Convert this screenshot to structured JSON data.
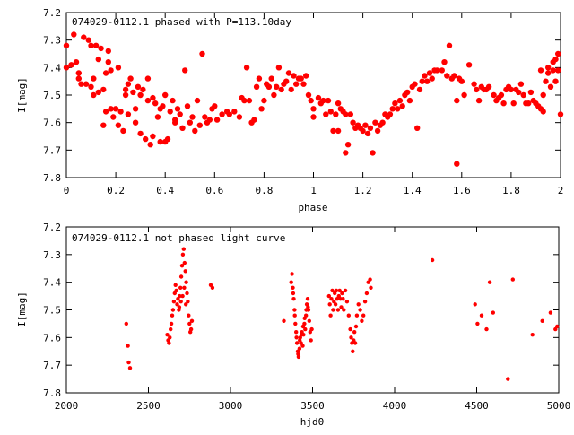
{
  "chart_data": [
    {
      "type": "scatter",
      "title": "074029-0112.1 phased with P=113.10day",
      "xlabel": "phase",
      "ylabel": "I[mag]",
      "xlim": [
        0,
        2
      ],
      "ylim": [
        7.8,
        7.2
      ],
      "y_inverted": true,
      "grid": false,
      "point_color": "#ff0000",
      "x_ticks": [
        "0",
        "0.2",
        "0.4",
        "0.6",
        "0.8",
        "1",
        "1.2",
        "1.4",
        "1.6",
        "1.8",
        "2"
      ],
      "y_ticks": [
        "7.2",
        "7.3",
        "7.4",
        "7.5",
        "7.6",
        "7.7",
        "7.8"
      ],
      "points": [
        [
          0.0,
          7.32
        ],
        [
          0.0,
          7.4
        ],
        [
          0.02,
          7.39
        ],
        [
          0.03,
          7.28
        ],
        [
          0.04,
          7.38
        ],
        [
          0.05,
          7.42
        ],
        [
          0.05,
          7.44
        ],
        [
          0.06,
          7.46
        ],
        [
          0.07,
          7.29
        ],
        [
          0.08,
          7.46
        ],
        [
          0.09,
          7.3
        ],
        [
          0.1,
          7.47
        ],
        [
          0.1,
          7.32
        ],
        [
          0.11,
          7.44
        ],
        [
          0.11,
          7.5
        ],
        [
          0.12,
          7.32
        ],
        [
          0.13,
          7.37
        ],
        [
          0.13,
          7.49
        ],
        [
          0.14,
          7.33
        ],
        [
          0.15,
          7.61
        ],
        [
          0.15,
          7.48
        ],
        [
          0.16,
          7.56
        ],
        [
          0.16,
          7.42
        ],
        [
          0.17,
          7.38
        ],
        [
          0.17,
          7.34
        ],
        [
          0.18,
          7.41
        ],
        [
          0.18,
          7.55
        ],
        [
          0.19,
          7.58
        ],
        [
          0.2,
          7.55
        ],
        [
          0.21,
          7.4
        ],
        [
          0.21,
          7.61
        ],
        [
          0.22,
          7.56
        ],
        [
          0.23,
          7.63
        ],
        [
          0.24,
          7.48
        ],
        [
          0.24,
          7.5
        ],
        [
          0.25,
          7.46
        ],
        [
          0.25,
          7.57
        ],
        [
          0.26,
          7.44
        ],
        [
          0.27,
          7.49
        ],
        [
          0.28,
          7.55
        ],
        [
          0.28,
          7.6
        ],
        [
          0.29,
          7.47
        ],
        [
          0.3,
          7.64
        ],
        [
          0.3,
          7.5
        ],
        [
          0.31,
          7.48
        ],
        [
          0.32,
          7.66
        ],
        [
          0.33,
          7.52
        ],
        [
          0.33,
          7.44
        ],
        [
          0.34,
          7.68
        ],
        [
          0.35,
          7.65
        ],
        [
          0.35,
          7.51
        ],
        [
          0.36,
          7.53
        ],
        [
          0.37,
          7.58
        ],
        [
          0.38,
          7.67
        ],
        [
          0.38,
          7.55
        ],
        [
          0.39,
          7.54
        ],
        [
          0.4,
          7.67
        ],
        [
          0.4,
          7.5
        ],
        [
          0.41,
          7.66
        ],
        [
          0.42,
          7.56
        ],
        [
          0.43,
          7.52
        ],
        [
          0.44,
          7.59
        ],
        [
          0.44,
          7.6
        ],
        [
          0.45,
          7.55
        ],
        [
          0.46,
          7.57
        ],
        [
          0.47,
          7.62
        ],
        [
          0.48,
          7.41
        ],
        [
          0.49,
          7.54
        ],
        [
          0.5,
          7.6
        ],
        [
          0.51,
          7.58
        ],
        [
          0.52,
          7.63
        ],
        [
          0.53,
          7.52
        ],
        [
          0.54,
          7.61
        ],
        [
          0.55,
          7.35
        ],
        [
          0.56,
          7.58
        ],
        [
          0.57,
          7.6
        ],
        [
          0.58,
          7.59
        ],
        [
          0.59,
          7.55
        ],
        [
          0.6,
          7.54
        ],
        [
          0.61,
          7.59
        ],
        [
          0.63,
          7.57
        ],
        [
          0.65,
          7.56
        ],
        [
          0.66,
          7.57
        ],
        [
          0.68,
          7.56
        ],
        [
          0.7,
          7.58
        ],
        [
          0.71,
          7.51
        ],
        [
          0.72,
          7.52
        ],
        [
          0.73,
          7.4
        ],
        [
          0.74,
          7.52
        ],
        [
          0.75,
          7.6
        ],
        [
          0.76,
          7.59
        ],
        [
          0.77,
          7.47
        ],
        [
          0.78,
          7.44
        ],
        [
          0.79,
          7.55
        ],
        [
          0.8,
          7.52
        ],
        [
          0.81,
          7.46
        ],
        [
          0.82,
          7.47
        ],
        [
          0.83,
          7.44
        ],
        [
          0.84,
          7.5
        ],
        [
          0.85,
          7.47
        ],
        [
          0.86,
          7.4
        ],
        [
          0.87,
          7.48
        ],
        [
          0.88,
          7.46
        ],
        [
          0.89,
          7.45
        ],
        [
          0.9,
          7.42
        ],
        [
          0.91,
          7.48
        ],
        [
          0.92,
          7.43
        ],
        [
          0.93,
          7.46
        ],
        [
          0.94,
          7.44
        ],
        [
          0.95,
          7.44
        ],
        [
          0.96,
          7.46
        ],
        [
          0.97,
          7.43
        ],
        [
          0.98,
          7.5
        ],
        [
          0.99,
          7.52
        ],
        [
          1.0,
          7.55
        ],
        [
          1.0,
          7.58
        ],
        [
          1.02,
          7.51
        ],
        [
          1.03,
          7.53
        ],
        [
          1.04,
          7.52
        ],
        [
          1.05,
          7.57
        ],
        [
          1.06,
          7.52
        ],
        [
          1.07,
          7.56
        ],
        [
          1.08,
          7.63
        ],
        [
          1.09,
          7.57
        ],
        [
          1.1,
          7.53
        ],
        [
          1.1,
          7.63
        ],
        [
          1.11,
          7.55
        ],
        [
          1.12,
          7.56
        ],
        [
          1.13,
          7.71
        ],
        [
          1.13,
          7.57
        ],
        [
          1.14,
          7.68
        ],
        [
          1.15,
          7.57
        ],
        [
          1.16,
          7.6
        ],
        [
          1.17,
          7.62
        ],
        [
          1.18,
          7.61
        ],
        [
          1.19,
          7.62
        ],
        [
          1.2,
          7.63
        ],
        [
          1.21,
          7.61
        ],
        [
          1.22,
          7.64
        ],
        [
          1.23,
          7.62
        ],
        [
          1.24,
          7.71
        ],
        [
          1.25,
          7.6
        ],
        [
          1.26,
          7.63
        ],
        [
          1.27,
          7.61
        ],
        [
          1.28,
          7.6
        ],
        [
          1.29,
          7.57
        ],
        [
          1.3,
          7.58
        ],
        [
          1.31,
          7.57
        ],
        [
          1.32,
          7.55
        ],
        [
          1.33,
          7.53
        ],
        [
          1.34,
          7.55
        ],
        [
          1.35,
          7.52
        ],
        [
          1.36,
          7.54
        ],
        [
          1.37,
          7.5
        ],
        [
          1.38,
          7.49
        ],
        [
          1.39,
          7.52
        ],
        [
          1.4,
          7.47
        ],
        [
          1.41,
          7.46
        ],
        [
          1.42,
          7.62
        ],
        [
          1.43,
          7.48
        ],
        [
          1.44,
          7.45
        ],
        [
          1.45,
          7.43
        ],
        [
          1.46,
          7.45
        ],
        [
          1.47,
          7.42
        ],
        [
          1.48,
          7.44
        ],
        [
          1.49,
          7.41
        ],
        [
          1.5,
          7.41
        ],
        [
          1.52,
          7.41
        ],
        [
          1.53,
          7.38
        ],
        [
          1.54,
          7.43
        ],
        [
          1.55,
          7.32
        ],
        [
          1.56,
          7.44
        ],
        [
          1.57,
          7.43
        ],
        [
          1.58,
          7.52
        ],
        [
          1.58,
          7.75
        ],
        [
          1.59,
          7.44
        ],
        [
          1.6,
          7.45
        ],
        [
          1.61,
          7.5
        ],
        [
          1.63,
          7.39
        ],
        [
          1.65,
          7.46
        ],
        [
          1.66,
          7.48
        ],
        [
          1.67,
          7.52
        ],
        [
          1.68,
          7.47
        ],
        [
          1.69,
          7.48
        ],
        [
          1.7,
          7.48
        ],
        [
          1.71,
          7.47
        ],
        [
          1.73,
          7.5
        ],
        [
          1.74,
          7.52
        ],
        [
          1.75,
          7.51
        ],
        [
          1.76,
          7.5
        ],
        [
          1.77,
          7.53
        ],
        [
          1.78,
          7.48
        ],
        [
          1.79,
          7.47
        ],
        [
          1.8,
          7.48
        ],
        [
          1.81,
          7.53
        ],
        [
          1.82,
          7.48
        ],
        [
          1.83,
          7.49
        ],
        [
          1.84,
          7.46
        ],
        [
          1.85,
          7.5
        ],
        [
          1.86,
          7.53
        ],
        [
          1.87,
          7.53
        ],
        [
          1.88,
          7.49
        ],
        [
          1.89,
          7.52
        ],
        [
          1.9,
          7.53
        ],
        [
          1.91,
          7.54
        ],
        [
          1.92,
          7.55
        ],
        [
          1.92,
          7.41
        ],
        [
          1.93,
          7.56
        ],
        [
          1.94,
          7.45
        ],
        [
          1.95,
          7.42
        ],
        [
          1.95,
          7.4
        ],
        [
          1.96,
          7.47
        ],
        [
          1.97,
          7.38
        ],
        [
          1.97,
          7.41
        ],
        [
          1.98,
          7.37
        ],
        [
          1.99,
          7.35
        ],
        [
          1.99,
          7.41
        ],
        [
          2.0,
          7.57
        ],
        [
          1.93,
          7.5
        ],
        [
          1.98,
          7.45
        ]
      ]
    },
    {
      "type": "scatter",
      "title": "074029-0112.1 not phased light curve",
      "xlabel": "hjd0",
      "ylabel": "I[mag]",
      "xlim": [
        2000,
        5000
      ],
      "ylim": [
        7.8,
        7.2
      ],
      "y_inverted": true,
      "grid": false,
      "point_color": "#ff0000",
      "x_ticks": [
        "2000",
        "2500",
        "3000",
        "3500",
        "4000",
        "4500",
        "5000"
      ],
      "y_ticks": [
        "7.2",
        "7.3",
        "7.4",
        "7.5",
        "7.6",
        "7.7",
        "7.8"
      ],
      "points": [
        [
          2365,
          7.55
        ],
        [
          2375,
          7.63
        ],
        [
          2380,
          7.69
        ],
        [
          2388,
          7.71
        ],
        [
          2615,
          7.59
        ],
        [
          2620,
          7.61
        ],
        [
          2625,
          7.62
        ],
        [
          2630,
          7.6
        ],
        [
          2635,
          7.57
        ],
        [
          2640,
          7.55
        ],
        [
          2645,
          7.52
        ],
        [
          2650,
          7.5
        ],
        [
          2655,
          7.47
        ],
        [
          2660,
          7.44
        ],
        [
          2665,
          7.41
        ],
        [
          2670,
          7.43
        ],
        [
          2675,
          7.48
        ],
        [
          2680,
          7.46
        ],
        [
          2685,
          7.5
        ],
        [
          2690,
          7.45
        ],
        [
          2695,
          7.42
        ],
        [
          2700,
          7.38
        ],
        [
          2705,
          7.34
        ],
        [
          2710,
          7.3
        ],
        [
          2715,
          7.28
        ],
        [
          2720,
          7.33
        ],
        [
          2725,
          7.36
        ],
        [
          2730,
          7.4
        ],
        [
          2735,
          7.44
        ],
        [
          2740,
          7.47
        ],
        [
          2745,
          7.52
        ],
        [
          2750,
          7.55
        ],
        [
          2755,
          7.58
        ],
        [
          2760,
          7.57
        ],
        [
          2765,
          7.54
        ],
        [
          2688,
          7.49
        ],
        [
          2698,
          7.47
        ],
        [
          2708,
          7.45
        ],
        [
          2718,
          7.42
        ],
        [
          2728,
          7.48
        ],
        [
          2880,
          7.41
        ],
        [
          2890,
          7.42
        ],
        [
          3325,
          7.54
        ],
        [
          3370,
          7.4
        ],
        [
          3375,
          7.37
        ],
        [
          3380,
          7.42
        ],
        [
          3385,
          7.46
        ],
        [
          3390,
          7.5
        ],
        [
          3395,
          7.55
        ],
        [
          3400,
          7.58
        ],
        [
          3405,
          7.62
        ],
        [
          3410,
          7.65
        ],
        [
          3415,
          7.67
        ],
        [
          3420,
          7.64
        ],
        [
          3425,
          7.6
        ],
        [
          3430,
          7.62
        ],
        [
          3435,
          7.58
        ],
        [
          3440,
          7.63
        ],
        [
          3445,
          7.59
        ],
        [
          3450,
          7.55
        ],
        [
          3455,
          7.57
        ],
        [
          3460,
          7.52
        ],
        [
          3465,
          7.48
        ],
        [
          3470,
          7.46
        ],
        [
          3475,
          7.5
        ],
        [
          3480,
          7.54
        ],
        [
          3485,
          7.58
        ],
        [
          3490,
          7.61
        ],
        [
          3495,
          7.57
        ],
        [
          3382,
          7.44
        ],
        [
          3392,
          7.52
        ],
        [
          3402,
          7.6
        ],
        [
          3412,
          7.66
        ],
        [
          3422,
          7.61
        ],
        [
          3432,
          7.59
        ],
        [
          3442,
          7.56
        ],
        [
          3452,
          7.53
        ],
        [
          3462,
          7.5
        ],
        [
          3472,
          7.49
        ],
        [
          3600,
          7.45
        ],
        [
          3605,
          7.48
        ],
        [
          3610,
          7.52
        ],
        [
          3615,
          7.46
        ],
        [
          3620,
          7.43
        ],
        [
          3625,
          7.5
        ],
        [
          3630,
          7.47
        ],
        [
          3635,
          7.44
        ],
        [
          3640,
          7.48
        ],
        [
          3645,
          7.43
        ],
        [
          3650,
          7.46
        ],
        [
          3655,
          7.5
        ],
        [
          3660,
          7.45
        ],
        [
          3665,
          7.43
        ],
        [
          3670,
          7.46
        ],
        [
          3675,
          7.49
        ],
        [
          3680,
          7.44
        ],
        [
          3685,
          7.46
        ],
        [
          3690,
          7.5
        ],
        [
          3700,
          7.43
        ],
        [
          3710,
          7.47
        ],
        [
          3720,
          7.52
        ],
        [
          3730,
          7.57
        ],
        [
          3735,
          7.6
        ],
        [
          3740,
          7.62
        ],
        [
          3745,
          7.65
        ],
        [
          3750,
          7.61
        ],
        [
          3755,
          7.58
        ],
        [
          3760,
          7.62
        ],
        [
          3765,
          7.56
        ],
        [
          3770,
          7.52
        ],
        [
          3780,
          7.48
        ],
        [
          3790,
          7.5
        ],
        [
          3800,
          7.54
        ],
        [
          3810,
          7.52
        ],
        [
          3820,
          7.47
        ],
        [
          3830,
          7.44
        ],
        [
          3840,
          7.4
        ],
        [
          3850,
          7.39
        ],
        [
          3855,
          7.42
        ],
        [
          4230,
          7.32
        ],
        [
          4490,
          7.48
        ],
        [
          4505,
          7.55
        ],
        [
          4530,
          7.52
        ],
        [
          4560,
          7.57
        ],
        [
          4580,
          7.4
        ],
        [
          4600,
          7.51
        ],
        [
          4690,
          7.75
        ],
        [
          4720,
          7.39
        ],
        [
          4840,
          7.59
        ],
        [
          4900,
          7.54
        ],
        [
          4950,
          7.51
        ],
        [
          4980,
          7.57
        ],
        [
          4990,
          7.56
        ]
      ]
    }
  ]
}
